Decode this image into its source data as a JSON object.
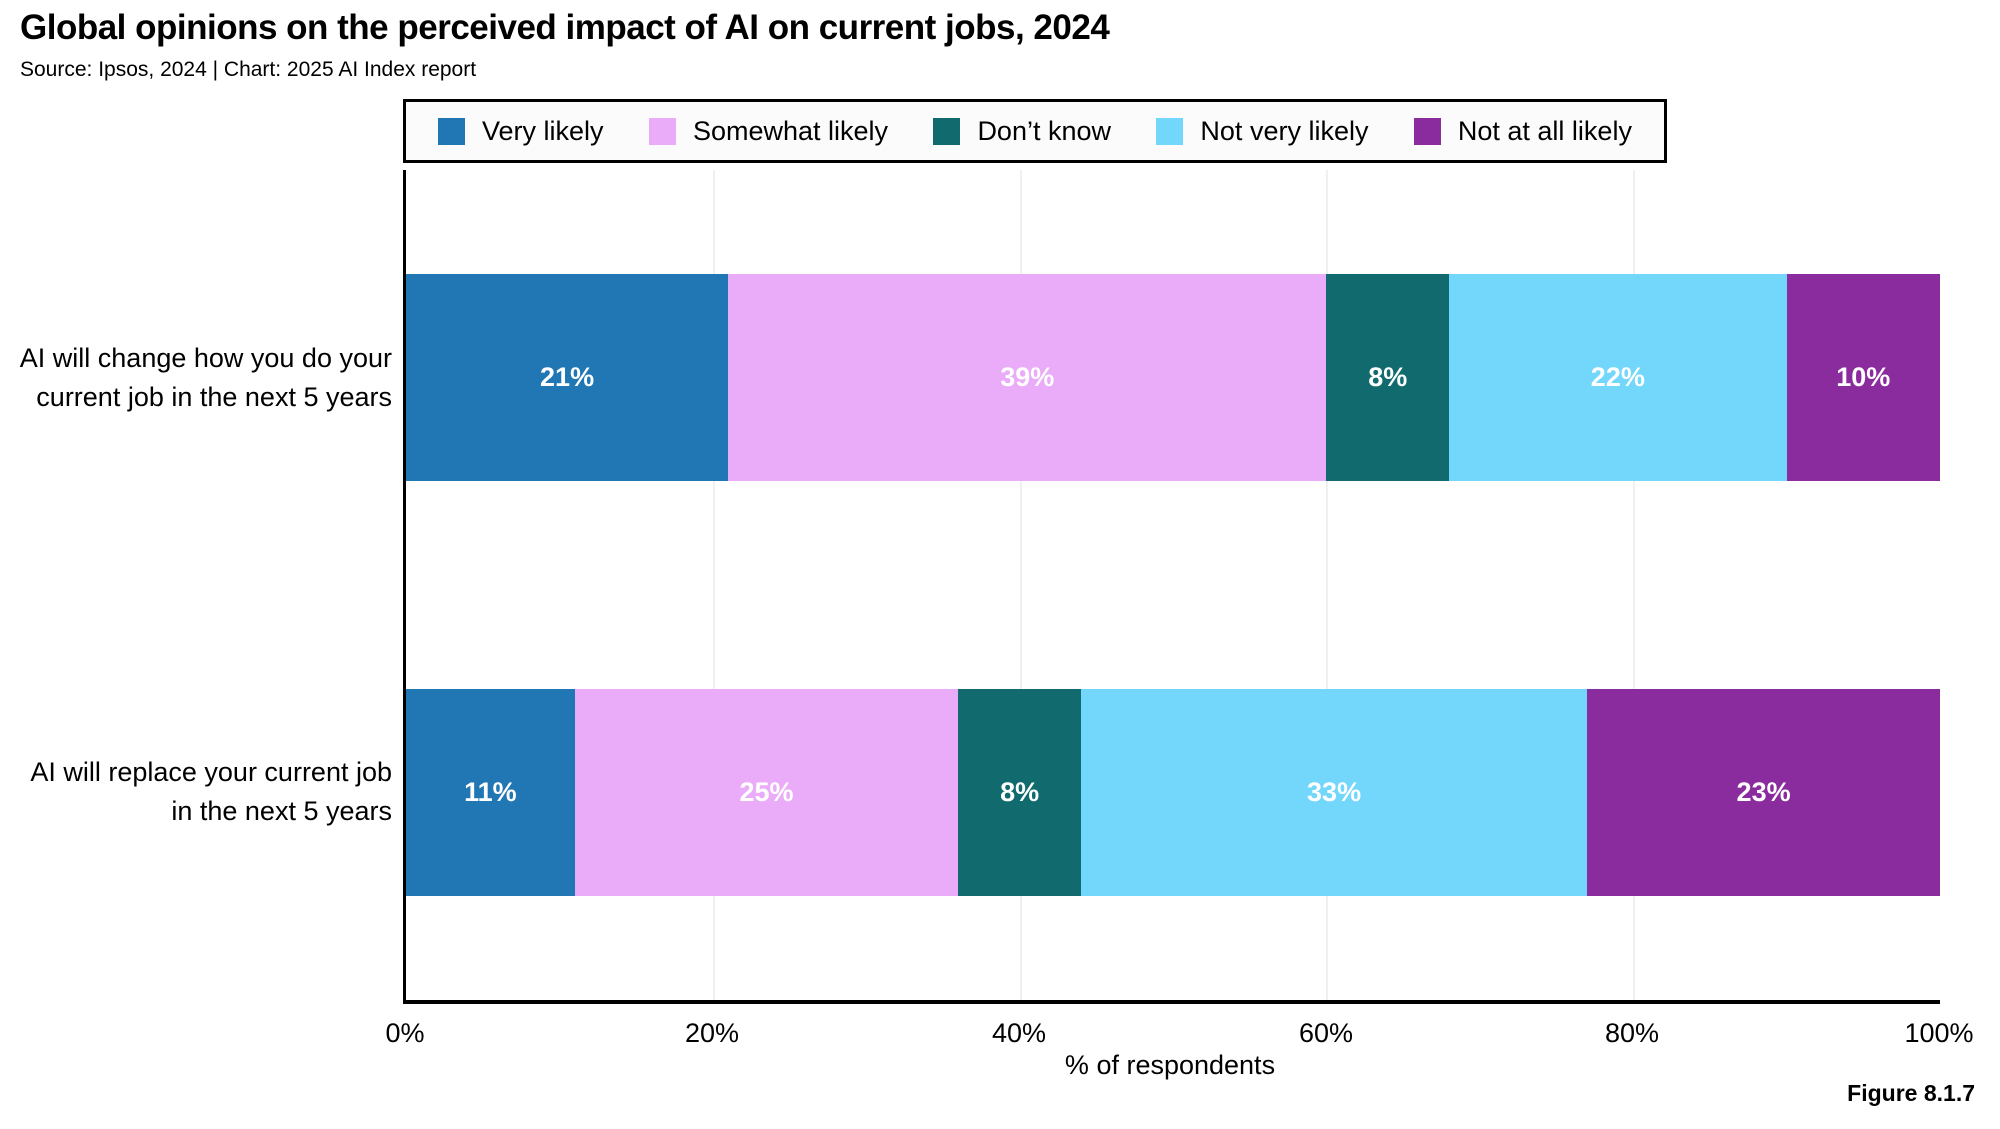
{
  "header": {
    "title": "Global opinions on the perceived impact of AI on current jobs, 2024",
    "subtitle": "Source: Ipsos, 2024 | Chart: 2025 AI Index report"
  },
  "figure_label": "Figure 8.1.7",
  "colors": {
    "very_likely": "#2077B4",
    "somewhat_likely": "#EAABF8",
    "dont_know": "#106A6E",
    "not_very_likely": "#73D7FC",
    "not_at_all_likely": "#8A2B9E",
    "axis": "#000000",
    "gridline": "#f0f0f0"
  },
  "legend": {
    "items": [
      {
        "label": "Very likely",
        "color": "#2077B4"
      },
      {
        "label": "Somewhat likely",
        "color": "#EAABF8"
      },
      {
        "label": "Don’t know",
        "color": "#106A6E"
      },
      {
        "label": "Not very likely",
        "color": "#73D7FC"
      },
      {
        "label": "Not at all likely",
        "color": "#8A2B9E"
      }
    ]
  },
  "chart_data": {
    "type": "bar",
    "stacked": true,
    "orientation": "horizontal",
    "title": "Global opinions on the perceived impact of AI on current jobs, 2024",
    "xlabel": "% of respondents",
    "xlim": [
      0,
      100
    ],
    "x_ticks": [
      "0%",
      "20%",
      "40%",
      "60%",
      "80%",
      "100%"
    ],
    "grid": "vertical light-gray lines at 20% steps",
    "legend_position": "top",
    "categories": [
      "AI will change how you do your current job in the next 5 years",
      "AI will replace your current job in the next 5 years"
    ],
    "category_lines": [
      {
        "line1": "AI will change how you do your",
        "line2": "current job in the next 5 years"
      },
      {
        "line1": "AI will replace your current job",
        "line2": "in the next 5 years"
      }
    ],
    "series": [
      {
        "name": "Very likely",
        "color": "#2077B4",
        "values": [
          21,
          11
        ]
      },
      {
        "name": "Somewhat likely",
        "color": "#EAABF8",
        "values": [
          39,
          25
        ]
      },
      {
        "name": "Don’t know",
        "color": "#106A6E",
        "values": [
          8,
          8
        ]
      },
      {
        "name": "Not very likely",
        "color": "#73D7FC",
        "values": [
          22,
          33
        ]
      },
      {
        "name": "Not at all likely",
        "color": "#8A2B9E",
        "values": [
          10,
          23
        ]
      }
    ],
    "value_labels": [
      [
        "21%",
        "39%",
        "8%",
        "22%",
        "10%"
      ],
      [
        "11%",
        "25%",
        "8%",
        "33%",
        "23%"
      ]
    ]
  }
}
